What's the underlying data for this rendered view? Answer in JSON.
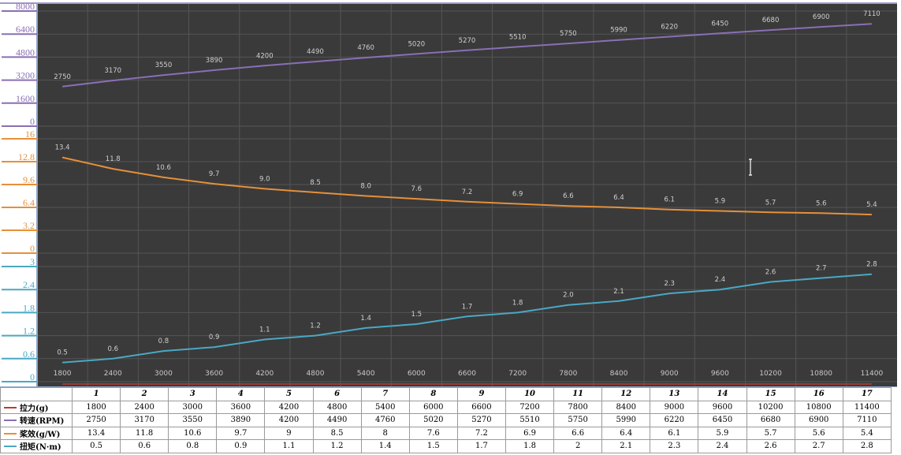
{
  "chart_data": {
    "type": "line",
    "x": [
      1800,
      2400,
      3000,
      3600,
      4200,
      4800,
      5400,
      6000,
      6600,
      7200,
      7800,
      8400,
      9000,
      9600,
      10200,
      10800,
      11400
    ],
    "x_tick_labels": [
      "1800",
      "2400",
      "3000",
      "3600",
      "4200",
      "4800",
      "5400",
      "6000",
      "6600",
      "7200",
      "7800",
      "8400",
      "9000",
      "9600",
      "10200",
      "10800",
      "11400"
    ],
    "grid": true,
    "panels": [
      {
        "series_index": 1,
        "ylim": [
          0,
          8000
        ],
        "y_ticks": [
          "8000",
          "6400",
          "4800",
          "3200",
          "1600",
          "0"
        ],
        "color": "#8a6fb5"
      },
      {
        "series_index": 2,
        "ylim": [
          0,
          16
        ],
        "y_ticks": [
          "16",
          "12.8",
          "9.6",
          "6.4",
          "3.2",
          "0"
        ],
        "color": "#e5903a"
      },
      {
        "series_index": 3,
        "ylim": [
          0,
          3
        ],
        "y_ticks": [
          "3",
          "2.4",
          "1.8",
          "1.2",
          "0.6",
          "0"
        ],
        "color": "#4aa8c4"
      }
    ],
    "data_labels": [
      [],
      [
        "2750",
        "3170",
        "3550",
        "3890",
        "4200",
        "4490",
        "4760",
        "5020",
        "5270",
        "5510",
        "5750",
        "5990",
        "6220",
        "6450",
        "6680",
        "6900",
        "7110"
      ],
      [
        "13.4",
        "11.8",
        "10.6",
        "9.7",
        "9.0",
        "8.5",
        "8.0",
        "7.6",
        "7.2",
        "6.9",
        "6.6",
        "6.4",
        "6.1",
        "5.9",
        "5.7",
        "5.6",
        "5.4"
      ],
      [
        "0.5",
        "0.6",
        "0.8",
        "0.9",
        "1.1",
        "1.2",
        "1.4",
        "1.5",
        "1.7",
        "1.8",
        "2.0",
        "2.1",
        "2.3",
        "2.4",
        "2.6",
        "2.7",
        "2.8"
      ]
    ],
    "series": [
      {
        "name": "拉力(g)",
        "color": "#c0392b",
        "values": [
          1800,
          2400,
          3000,
          3600,
          4200,
          4800,
          5400,
          6000,
          6600,
          7200,
          7800,
          8400,
          9000,
          9600,
          10200,
          10800,
          11400
        ]
      },
      {
        "name": "转速(RPM)",
        "color": "#8a6fb5",
        "values": [
          2750,
          3170,
          3550,
          3890,
          4200,
          4490,
          4760,
          5020,
          5270,
          5510,
          5750,
          5990,
          6220,
          6450,
          6680,
          6900,
          7110
        ]
      },
      {
        "name": "桨效(g/W)",
        "color": "#e5903a",
        "values": [
          13.4,
          11.8,
          10.6,
          9.7,
          9.0,
          8.5,
          8.0,
          7.6,
          7.2,
          6.9,
          6.6,
          6.4,
          6.1,
          5.9,
          5.7,
          5.6,
          5.4
        ]
      },
      {
        "name": "扭矩(N·m)",
        "color": "#4aa8c4",
        "values": [
          0.5,
          0.6,
          0.8,
          0.9,
          1.1,
          1.2,
          1.4,
          1.5,
          1.7,
          1.8,
          2.0,
          2.1,
          2.3,
          2.4,
          2.6,
          2.7,
          2.8
        ]
      }
    ]
  },
  "table": {
    "columns": [
      "1",
      "2",
      "3",
      "4",
      "5",
      "6",
      "7",
      "8",
      "9",
      "10",
      "11",
      "12",
      "13",
      "14",
      "15",
      "16",
      "17"
    ],
    "rows": [
      {
        "label": "拉力(g)",
        "color": "#c0392b",
        "cells": [
          "1800",
          "2400",
          "3000",
          "3600",
          "4200",
          "4800",
          "5400",
          "6000",
          "6600",
          "7200",
          "7800",
          "8400",
          "9000",
          "9600",
          "10200",
          "10800",
          "11400"
        ]
      },
      {
        "label": "转速(RPM)",
        "color": "#8a6fb5",
        "cells": [
          "2750",
          "3170",
          "3550",
          "3890",
          "4200",
          "4490",
          "4760",
          "5020",
          "5270",
          "5510",
          "5750",
          "5990",
          "6220",
          "6450",
          "6680",
          "6900",
          "7110"
        ]
      },
      {
        "label": "桨效(g/W)",
        "color": "#e5903a",
        "cells": [
          "13.4",
          "11.8",
          "10.6",
          "9.7",
          "9",
          "8.5",
          "8",
          "7.6",
          "7.2",
          "6.9",
          "6.6",
          "6.4",
          "6.1",
          "5.9",
          "5.7",
          "5.6",
          "5.4"
        ]
      },
      {
        "label": "扭矩(N·m)",
        "color": "#4aa8c4",
        "cells": [
          "0.5",
          "0.6",
          "0.8",
          "0.9",
          "1.1",
          "1.2",
          "1.4",
          "1.5",
          "1.7",
          "1.8",
          "2",
          "2.1",
          "2.3",
          "2.4",
          "2.6",
          "2.7",
          "2.8"
        ]
      }
    ]
  }
}
